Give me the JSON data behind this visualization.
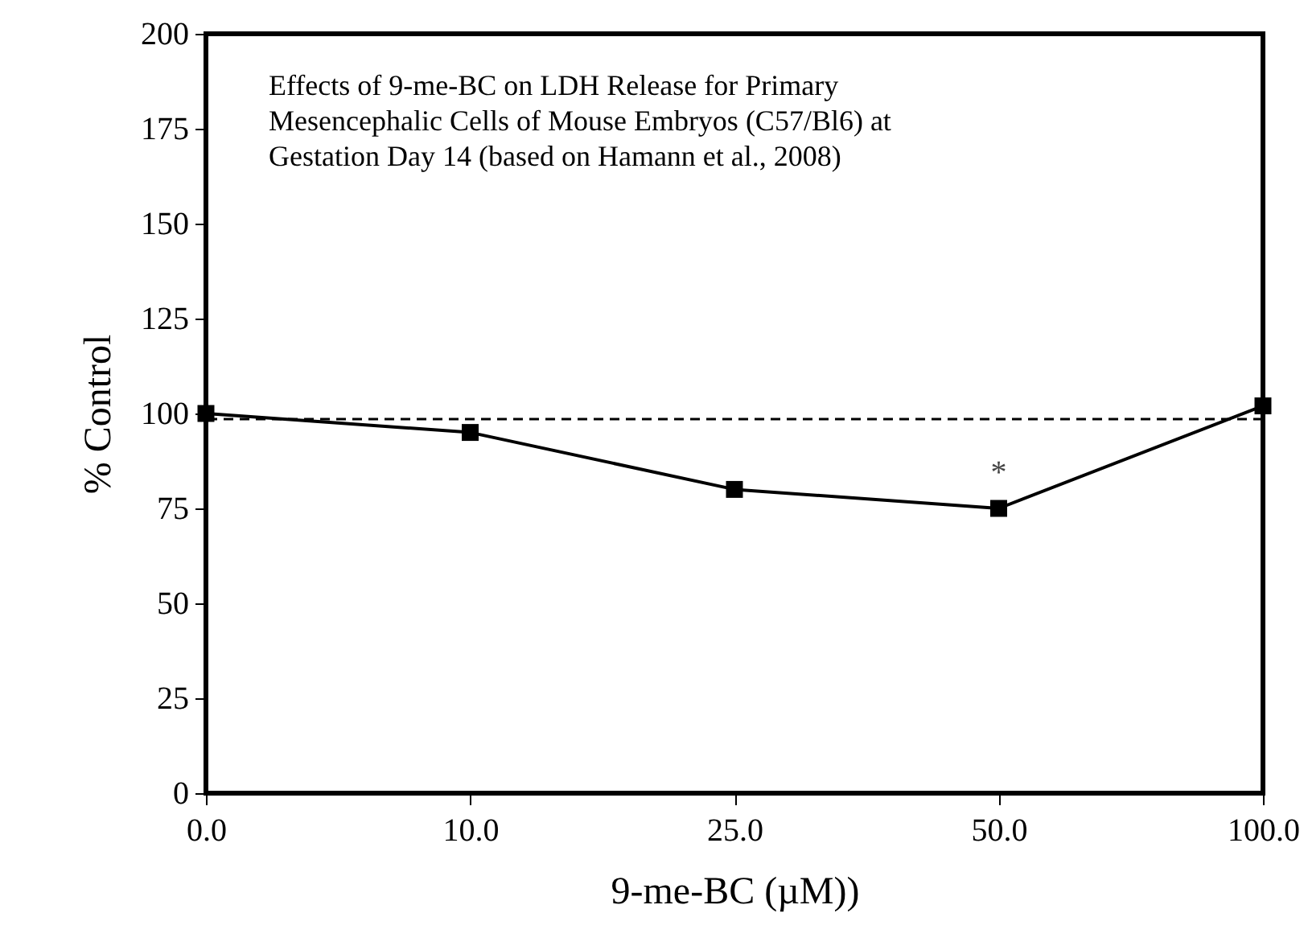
{
  "chart_data": {
    "type": "line",
    "title": "Effects of 9-me-BC on LDH Release for Primary\nMesencephalic Cells of Mouse Embryos (C57/Bl6) at\nGestation Day 14 (based on Hamann et al., 2008)",
    "xlabel": "9-me-BC (µM))",
    "ylabel": "% Control",
    "categories": [
      "0.0",
      "10.0",
      "25.0",
      "50.0",
      "100.0"
    ],
    "series": [
      {
        "color": "#000000",
        "values": [
          100,
          95,
          80,
          75,
          102
        ]
      }
    ],
    "ylim": [
      0,
      200
    ],
    "yticks": [
      0,
      25,
      50,
      75,
      100,
      125,
      150,
      175,
      200
    ],
    "grid": false,
    "marker": "square",
    "line_style": "solid",
    "ref_lines": [
      {
        "axis": "y",
        "value": 98.5,
        "color": "#000000",
        "line_style": "dashed"
      }
    ],
    "annotations": [
      {
        "text": "*",
        "x": "50.0",
        "y": 75
      }
    ]
  }
}
